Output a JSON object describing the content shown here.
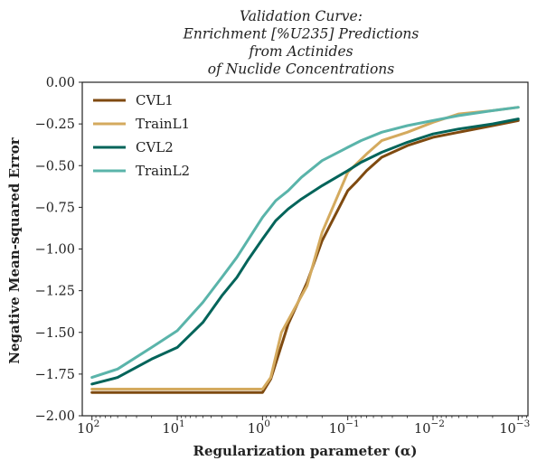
{
  "chart_data": {
    "type": "line",
    "title_lines": [
      "Validation Curve:",
      "Enrichment [%U235] Predictions",
      "from Actinides",
      "of Nuclide Concentrations"
    ],
    "xlabel": "Regularization parameter (α)",
    "ylabel": "Negative Mean-squared Error",
    "x_scale": "log",
    "x_reversed": true,
    "xlim": [
      130,
      0.00077
    ],
    "ylim": [
      -2.0,
      0.0
    ],
    "x_ticks": [
      {
        "value": 100,
        "base": "10",
        "exp": "2"
      },
      {
        "value": 10,
        "base": "10",
        "exp": "1"
      },
      {
        "value": 1,
        "base": "10",
        "exp": "0"
      },
      {
        "value": 0.1,
        "base": "10",
        "exp": "−1"
      },
      {
        "value": 0.01,
        "base": "10",
        "exp": "−2"
      },
      {
        "value": 0.001,
        "base": "10",
        "exp": "−3"
      }
    ],
    "y_ticks": [
      {
        "value": 0.0,
        "label": "0.00"
      },
      {
        "value": -0.25,
        "label": "−0.25"
      },
      {
        "value": -0.5,
        "label": "−0.50"
      },
      {
        "value": -0.75,
        "label": "−0.75"
      },
      {
        "value": -1.0,
        "label": "−1.00"
      },
      {
        "value": -1.25,
        "label": "−1.25"
      },
      {
        "value": -1.5,
        "label": "−1.50"
      },
      {
        "value": -1.75,
        "label": "−1.75"
      },
      {
        "value": -2.0,
        "label": "−2.00"
      }
    ],
    "grid": false,
    "legend_position": "upper-left",
    "series": [
      {
        "name": "CVL1",
        "color": "#7f4a10",
        "x": [
          100,
          50,
          20,
          10,
          5,
          2,
          1,
          0.8,
          0.5,
          0.3,
          0.2,
          0.1,
          0.08,
          0.06,
          0.04,
          0.02,
          0.01,
          0.005,
          0.002,
          0.001
        ],
        "y": [
          -1.86,
          -1.86,
          -1.86,
          -1.86,
          -1.86,
          -1.86,
          -1.86,
          -1.78,
          -1.45,
          -1.2,
          -0.95,
          -0.65,
          -0.6,
          -0.53,
          -0.45,
          -0.38,
          -0.33,
          -0.3,
          -0.26,
          -0.23
        ]
      },
      {
        "name": "TrainL1",
        "color": "#d4aa5e",
        "x": [
          100,
          50,
          20,
          10,
          5,
          2,
          1,
          0.8,
          0.6,
          0.3,
          0.2,
          0.1,
          0.06,
          0.04,
          0.02,
          0.01,
          0.005,
          0.002,
          0.001
        ],
        "y": [
          -1.84,
          -1.84,
          -1.84,
          -1.84,
          -1.84,
          -1.84,
          -1.84,
          -1.77,
          -1.5,
          -1.22,
          -0.9,
          -0.54,
          -0.43,
          -0.35,
          -0.3,
          -0.24,
          -0.19,
          -0.17,
          -0.15
        ]
      },
      {
        "name": "CVL2",
        "color": "#02645a",
        "x": [
          100,
          50,
          20,
          10,
          5,
          3,
          2,
          1.5,
          1,
          0.7,
          0.5,
          0.35,
          0.2,
          0.1,
          0.07,
          0.04,
          0.02,
          0.01,
          0.005,
          0.002,
          0.001
        ],
        "y": [
          -1.81,
          -1.77,
          -1.66,
          -1.59,
          -1.44,
          -1.28,
          -1.17,
          -1.07,
          -0.94,
          -0.83,
          -0.76,
          -0.7,
          -0.62,
          -0.53,
          -0.48,
          -0.42,
          -0.36,
          -0.31,
          -0.28,
          -0.25,
          -0.22
        ]
      },
      {
        "name": "TrainL2",
        "color": "#5ab4aa",
        "x": [
          100,
          50,
          20,
          10,
          5,
          3,
          2,
          1.5,
          1,
          0.7,
          0.5,
          0.35,
          0.2,
          0.1,
          0.07,
          0.04,
          0.02,
          0.01,
          0.005,
          0.002,
          0.001
        ],
        "y": [
          -1.77,
          -1.72,
          -1.59,
          -1.49,
          -1.32,
          -1.17,
          -1.05,
          -0.95,
          -0.81,
          -0.71,
          -0.65,
          -0.57,
          -0.47,
          -0.39,
          -0.35,
          -0.3,
          -0.26,
          -0.23,
          -0.2,
          -0.17,
          -0.15
        ]
      }
    ]
  }
}
